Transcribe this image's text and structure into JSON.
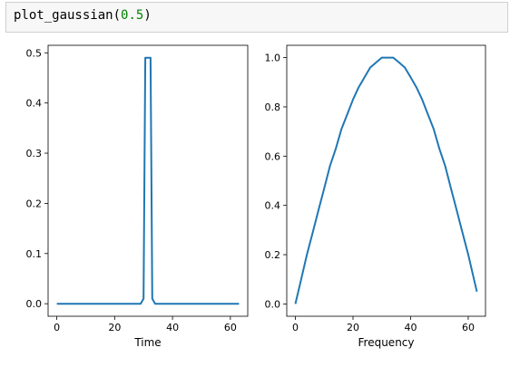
{
  "cell": {
    "code_func": "plot_gaussian(",
    "code_arg": "0.5",
    "code_close": ")"
  },
  "colors": {
    "line": "#1f77b4",
    "axis": "#000000"
  },
  "chart_data": [
    {
      "type": "line",
      "xlabel": "Time",
      "ylabel": "",
      "xlim": [
        -3,
        66
      ],
      "ylim": [
        -0.025,
        0.515
      ],
      "xticks": [
        0,
        20,
        40,
        60
      ],
      "yticks": [
        0.0,
        0.1,
        0.2,
        0.3,
        0.4,
        0.5
      ],
      "ytick_labels": [
        "0.0",
        "0.1",
        "0.2",
        "0.3",
        "0.4",
        "0.5"
      ],
      "grid": false,
      "series": [
        {
          "x": [
            0,
            29,
            30,
            30.6,
            31,
            32,
            32.4,
            33,
            34,
            63
          ],
          "y": [
            0,
            0,
            0.01,
            0.49,
            0.49,
            0.49,
            0.49,
            0.01,
            0,
            0
          ]
        }
      ]
    },
    {
      "type": "line",
      "xlabel": "Frequency",
      "ylabel": "",
      "xlim": [
        -3,
        66
      ],
      "ylim": [
        -0.05,
        1.05
      ],
      "xticks": [
        0,
        20,
        40,
        60
      ],
      "yticks": [
        0.0,
        0.2,
        0.4,
        0.6,
        0.8,
        1.0
      ],
      "ytick_labels": [
        "0.0",
        "0.2",
        "0.4",
        "0.6",
        "0.8",
        "1.0"
      ],
      "grid": false,
      "series": [
        {
          "x": [
            0,
            2,
            4,
            6,
            8,
            10,
            12,
            14,
            16,
            18,
            20,
            22,
            24,
            26,
            28,
            30,
            32,
            34,
            36,
            38,
            40,
            42,
            44,
            46,
            48,
            50,
            52,
            54,
            56,
            58,
            60,
            62,
            63
          ],
          "y": [
            0.0,
            0.1,
            0.2,
            0.29,
            0.38,
            0.47,
            0.56,
            0.63,
            0.71,
            0.77,
            0.83,
            0.88,
            0.92,
            0.96,
            0.98,
            1.0,
            1.0,
            1.0,
            0.98,
            0.96,
            0.92,
            0.88,
            0.83,
            0.77,
            0.71,
            0.63,
            0.56,
            0.47,
            0.38,
            0.29,
            0.2,
            0.1,
            0.05
          ]
        }
      ]
    }
  ]
}
